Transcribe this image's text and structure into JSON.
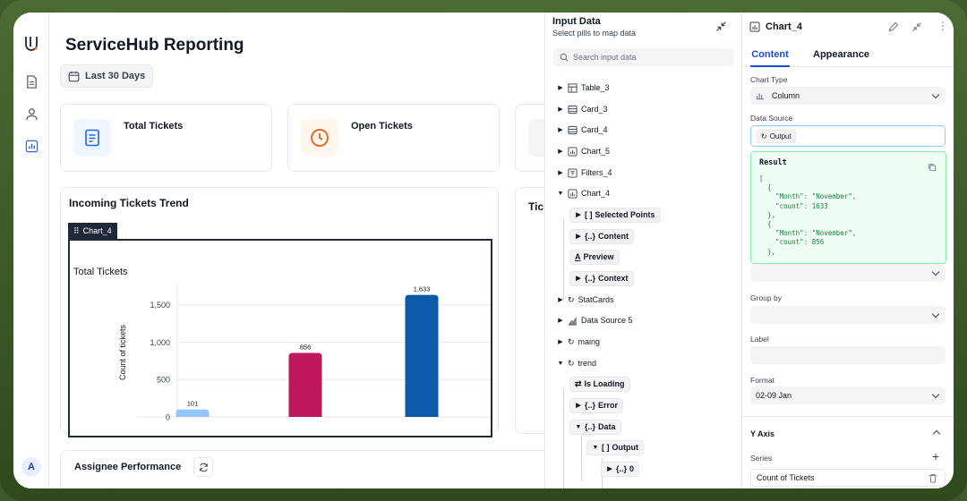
{
  "app": {
    "title": "ServiceHub Reporting",
    "date_range": "Last 30 Days",
    "avatar": "A"
  },
  "cards": [
    {
      "label": "Total Tickets",
      "icon": "document-icon",
      "color": "#2563eb"
    },
    {
      "label": "Open Tickets",
      "icon": "clock-icon",
      "color": "#ea580c"
    }
  ],
  "trend_panel": {
    "title": "Incoming Tickets Trend",
    "tag": "Chart_4",
    "partial_title": "Tic"
  },
  "assignee_panel": {
    "title": "Assignee Performance"
  },
  "chart_data": {
    "type": "bar",
    "title": "Total Tickets",
    "ylabel": "Count of tickets",
    "xlabel": "",
    "ylim": [
      0,
      1700
    ],
    "yticks": [
      0,
      500,
      1000,
      1500
    ],
    "ytick_labels": [
      "0",
      "500",
      "1,000",
      "1,500"
    ],
    "values": [
      101,
      856,
      1633
    ],
    "value_labels": [
      "101",
      "856",
      "1,633"
    ],
    "colors": [
      "#93c5fd",
      "#be185d",
      "#0b5aa8"
    ]
  },
  "input_panel": {
    "title": "Input Data",
    "subtitle": "Select pills to map data",
    "search_placeholder": "Search input data",
    "items": [
      {
        "label": "Table_3",
        "icon": "table-icon"
      },
      {
        "label": "Card_3",
        "icon": "card-icon"
      },
      {
        "label": "Card_4",
        "icon": "card-icon"
      },
      {
        "label": "Chart_5",
        "icon": "chart-icon"
      },
      {
        "label": "Filters_4",
        "icon": "filter-icon"
      },
      {
        "label": "Chart_4",
        "icon": "chart-icon"
      }
    ],
    "chart4_children": [
      {
        "label": "Selected Points",
        "glyph": "[ ]"
      },
      {
        "label": "Content",
        "glyph": "{..}"
      },
      {
        "label": "Preview",
        "glyph": "A"
      },
      {
        "label": "Context",
        "glyph": "{..}"
      }
    ],
    "items2": [
      {
        "label": "StatCards",
        "icon": "refresh-icon"
      },
      {
        "label": "Data Source 5",
        "icon": "area-chart-icon"
      },
      {
        "label": "maing",
        "icon": "refresh-icon"
      },
      {
        "label": "trend",
        "icon": "refresh-icon"
      }
    ],
    "trend_children": [
      {
        "label": "Is Loading",
        "glyph": "⇄"
      },
      {
        "label": "Error",
        "glyph": "{..}"
      },
      {
        "label": "Data",
        "glyph": "{..}"
      }
    ],
    "output_label": "Output",
    "output_glyph": "[ ]",
    "zero_label": "0",
    "zero_glyph": "{..}"
  },
  "props": {
    "title": "Chart_4",
    "tabs": [
      "Content",
      "Appearance"
    ],
    "chart_type_label": "Chart Type",
    "chart_type_value": "Column",
    "data_source_label": "Data Source",
    "data_source_value": "Output",
    "result_title": "Result",
    "result_json": "[\n  {\n    \"Month\": \"November\",\n    \"count\": 1633\n  },\n  {\n    \"Month\": \"November\",\n    \"count\": 856\n  },",
    "group_by_label": "Group by",
    "label_label": "Label",
    "format_label": "Format",
    "format_value": "02-09 Jan",
    "y_axis_label": "Y Axis",
    "series_label": "Series",
    "series_value": "Count of Tickets"
  }
}
